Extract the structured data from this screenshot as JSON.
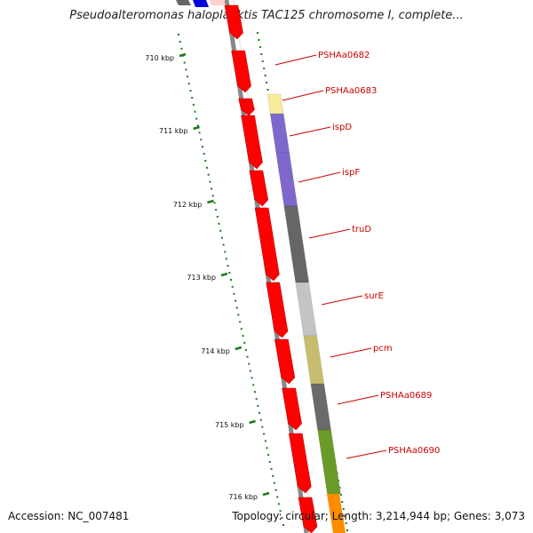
{
  "header": {
    "title": "Pseudoalteromonas haloplanktis TAC125 chromosome I, complete..."
  },
  "footer": {
    "accession": "Accession: NC_007481",
    "summary": "Topology: circular; Length: 3,214,944 bp; Genes: 3,073"
  },
  "ruler": {
    "ticks": [
      {
        "value": 710,
        "label": "710 kbp"
      },
      {
        "value": 711,
        "label": "711 kbp"
      },
      {
        "value": 712,
        "label": "712 kbp"
      },
      {
        "value": 713,
        "label": "713 kbp"
      },
      {
        "value": 714,
        "label": "714 kbp"
      },
      {
        "value": 715,
        "label": "715 kbp"
      },
      {
        "value": 716,
        "label": "716 kbp"
      }
    ]
  },
  "colors": {
    "cds_reverse": "#ff0000",
    "backbone": "#888888",
    "tick": "#1a7a1a",
    "gene_label": "#cc0000",
    "callout_line": "#cc0000"
  },
  "genes": [
    {
      "name": "PSHAa0682",
      "color": "#ff0000"
    },
    {
      "name": "PSHAa0683",
      "color": "#f5eb9b"
    },
    {
      "name": "ispD",
      "color": "#7e68cc"
    },
    {
      "name": "ispF",
      "color": "#7e68cc"
    },
    {
      "name": "truD",
      "color": "#666666"
    },
    {
      "name": "surE",
      "color": "#c4c4c4"
    },
    {
      "name": "pcm",
      "color": "#c7bd70"
    },
    {
      "name": "PSHAa0689",
      "color": "#6a6a6a"
    },
    {
      "name": "PSHAa0690",
      "color": "#6a9a28"
    }
  ]
}
